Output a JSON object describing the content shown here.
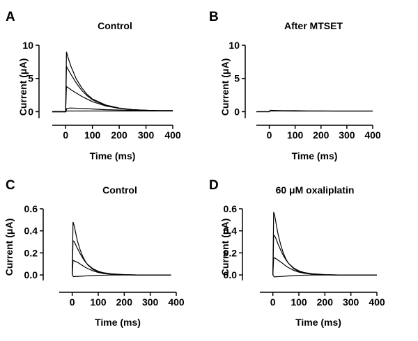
{
  "chart_data": [
    {
      "panel": "A",
      "type": "line",
      "title": "Control",
      "xlabel": "Time (ms)",
      "ylabel": "Current (μA)",
      "xlim": [
        -50,
        400
      ],
      "ylim": [
        -1,
        10
      ],
      "xticks": [
        0,
        100,
        200,
        300,
        400
      ],
      "yticks": [
        0,
        5,
        10
      ],
      "series": [
        {
          "x": [
            -50,
            0,
            3,
            6,
            10,
            20,
            40,
            60,
            80,
            100,
            150,
            200,
            250,
            300,
            350,
            400
          ],
          "y": [
            0,
            0,
            9.0,
            8.6,
            8.0,
            6.8,
            4.9,
            3.6,
            2.6,
            1.9,
            1.0,
            0.55,
            0.3,
            0.2,
            0.15,
            0.15
          ]
        },
        {
          "x": [
            -50,
            0,
            3,
            6,
            10,
            20,
            40,
            60,
            80,
            100,
            150,
            200,
            250,
            300,
            350,
            400
          ],
          "y": [
            0,
            0,
            6.8,
            6.6,
            6.3,
            5.6,
            4.3,
            3.2,
            2.4,
            1.8,
            0.9,
            0.5,
            0.3,
            0.2,
            0.15,
            0.15
          ]
        },
        {
          "x": [
            -50,
            0,
            3,
            6,
            10,
            20,
            40,
            60,
            80,
            100,
            150,
            200,
            250,
            300,
            350,
            400
          ],
          "y": [
            0,
            0,
            3.8,
            3.7,
            3.6,
            3.3,
            2.8,
            2.3,
            1.9,
            1.5,
            0.85,
            0.5,
            0.3,
            0.2,
            0.15,
            0.15
          ]
        },
        {
          "x": [
            -50,
            0,
            5,
            20,
            50,
            100,
            150,
            200,
            250,
            300,
            350,
            400
          ],
          "y": [
            0,
            0,
            0.5,
            0.55,
            0.5,
            0.4,
            0.3,
            0.25,
            0.2,
            0.15,
            0.15,
            0.15
          ]
        },
        {
          "x": [
            -50,
            0,
            5,
            50,
            100,
            200,
            300,
            400
          ],
          "y": [
            0,
            0,
            0.1,
            0.1,
            0.1,
            0.1,
            0.1,
            0.1
          ]
        }
      ]
    },
    {
      "panel": "B",
      "type": "line",
      "title": "After MTSET",
      "xlabel": "Time (ms)",
      "ylabel": "Current (μA)",
      "xlim": [
        -50,
        400
      ],
      "ylim": [
        -1,
        10
      ],
      "xticks": [
        0,
        100,
        200,
        300,
        400
      ],
      "yticks": [
        0,
        5,
        10
      ],
      "series": [
        {
          "x": [
            -50,
            0,
            3,
            50,
            100,
            150,
            200,
            250,
            300,
            350,
            400
          ],
          "y": [
            0,
            0,
            0.2,
            0.15,
            0.15,
            0.12,
            0.12,
            0.1,
            0.1,
            0.1,
            0.1
          ]
        },
        {
          "x": [
            -50,
            0,
            3,
            50,
            100,
            200,
            300,
            400
          ],
          "y": [
            0,
            0,
            0.1,
            0.1,
            0.08,
            0.08,
            0.08,
            0.08
          ]
        }
      ]
    },
    {
      "panel": "C",
      "type": "line",
      "title": "Control",
      "xlabel": "Time (ms)",
      "ylabel": "Current (μA)",
      "xlim": [
        -50,
        400
      ],
      "ylim": [
        -0.05,
        0.6
      ],
      "xticks": [
        0,
        100,
        200,
        300,
        400
      ],
      "yticks": [
        0.0,
        0.2,
        0.4,
        0.6
      ],
      "series": [
        {
          "x": [
            0,
            3,
            6,
            10,
            15,
            20,
            30,
            40,
            50,
            60,
            80,
            100,
            120,
            150,
            200,
            250,
            300,
            380
          ],
          "y": [
            0,
            0.48,
            0.46,
            0.42,
            0.36,
            0.31,
            0.23,
            0.17,
            0.125,
            0.09,
            0.05,
            0.028,
            0.016,
            0.008,
            0.002,
            0,
            0,
            0
          ]
        },
        {
          "x": [
            0,
            3,
            6,
            10,
            15,
            20,
            30,
            40,
            50,
            60,
            80,
            100,
            120,
            150,
            200,
            250,
            300,
            380
          ],
          "y": [
            0,
            0.31,
            0.305,
            0.29,
            0.265,
            0.24,
            0.195,
            0.155,
            0.12,
            0.093,
            0.056,
            0.033,
            0.02,
            0.01,
            0.003,
            0,
            0,
            0
          ]
        },
        {
          "x": [
            0,
            3,
            6,
            10,
            20,
            30,
            40,
            50,
            60,
            80,
            100,
            120,
            150,
            200,
            250,
            300,
            380
          ],
          "y": [
            0,
            0.13,
            0.13,
            0.125,
            0.115,
            0.1,
            0.085,
            0.07,
            0.057,
            0.037,
            0.022,
            0.013,
            0.006,
            0.002,
            0,
            0,
            0
          ]
        },
        {
          "x": [
            0,
            5,
            30,
            60,
            100,
            150,
            200,
            250,
            300,
            380
          ],
          "y": [
            0,
            -0.015,
            -0.012,
            -0.008,
            -0.004,
            -0.001,
            0,
            0,
            0,
            0
          ]
        }
      ]
    },
    {
      "panel": "D",
      "type": "line",
      "title": "60 μM oxaliplatin",
      "xlabel": "Time (ms)",
      "ylabel": "Current (μA)",
      "xlim": [
        -50,
        400
      ],
      "ylim": [
        -0.05,
        0.6
      ],
      "xticks": [
        0,
        100,
        200,
        300,
        400
      ],
      "yticks": [
        0.0,
        0.2,
        0.4,
        0.6
      ],
      "series": [
        {
          "x": [
            0,
            3,
            6,
            10,
            15,
            20,
            30,
            40,
            50,
            60,
            80,
            100,
            120,
            150,
            200,
            250,
            300,
            400
          ],
          "y": [
            0,
            0.57,
            0.55,
            0.5,
            0.43,
            0.37,
            0.275,
            0.2,
            0.145,
            0.105,
            0.057,
            0.031,
            0.017,
            0.008,
            0.002,
            0,
            0,
            0
          ]
        },
        {
          "x": [
            0,
            3,
            6,
            10,
            15,
            20,
            30,
            40,
            50,
            60,
            80,
            100,
            120,
            150,
            200,
            250,
            300,
            400
          ],
          "y": [
            0,
            0.36,
            0.355,
            0.34,
            0.31,
            0.28,
            0.225,
            0.178,
            0.138,
            0.106,
            0.063,
            0.037,
            0.022,
            0.011,
            0.003,
            0,
            0,
            0
          ]
        },
        {
          "x": [
            0,
            3,
            6,
            10,
            20,
            30,
            40,
            50,
            60,
            80,
            100,
            120,
            150,
            200,
            250,
            300,
            400
          ],
          "y": [
            0,
            0.155,
            0.155,
            0.15,
            0.135,
            0.118,
            0.1,
            0.082,
            0.066,
            0.042,
            0.026,
            0.015,
            0.007,
            0.002,
            0,
            0,
            0
          ]
        },
        {
          "x": [
            0,
            5,
            30,
            60,
            100,
            150,
            200,
            250,
            300,
            400
          ],
          "y": [
            0,
            -0.018,
            -0.014,
            -0.009,
            -0.004,
            -0.001,
            0,
            0,
            0,
            0
          ]
        }
      ]
    }
  ]
}
